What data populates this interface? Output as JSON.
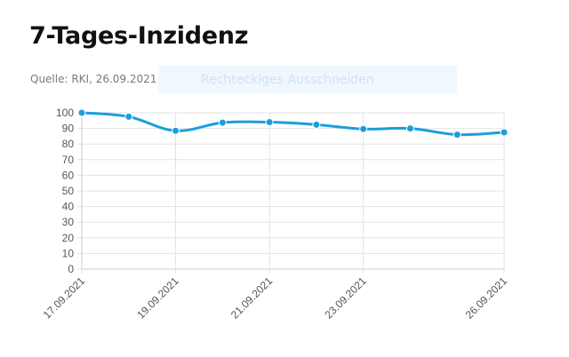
{
  "page": {
    "title": "7-Tages-Inzidenz",
    "source": "Quelle: RKI, 26.09.2021"
  },
  "overlay": {
    "label": "Rechteckiges Ausschneiden"
  },
  "colors": {
    "line": "#1a9fdb",
    "grid": "#e3e3e3",
    "axis_text": "#555555"
  },
  "chart_data": {
    "type": "line",
    "title": "7-Tages-Inzidenz",
    "x": [
      "17.09.2021",
      "18.09.2021",
      "19.09.2021",
      "20.09.2021",
      "21.09.2021",
      "22.09.2021",
      "23.09.2021",
      "24.09.2021",
      "25.09.2021",
      "26.09.2021"
    ],
    "x_tick_labels": [
      "17.09.2021",
      "19.09.2021",
      "21.09.2021",
      "23.09.2021",
      "26.09.2021"
    ],
    "series": [
      {
        "values": [
          100,
          97.5,
          88.5,
          93.7,
          94,
          92.4,
          89.6,
          90,
          86,
          87.5
        ]
      }
    ],
    "y_ticks": [
      0,
      10,
      20,
      30,
      40,
      50,
      60,
      70,
      80,
      90,
      100
    ],
    "ylim": [
      0,
      100
    ],
    "grid": true,
    "legend": "none"
  }
}
